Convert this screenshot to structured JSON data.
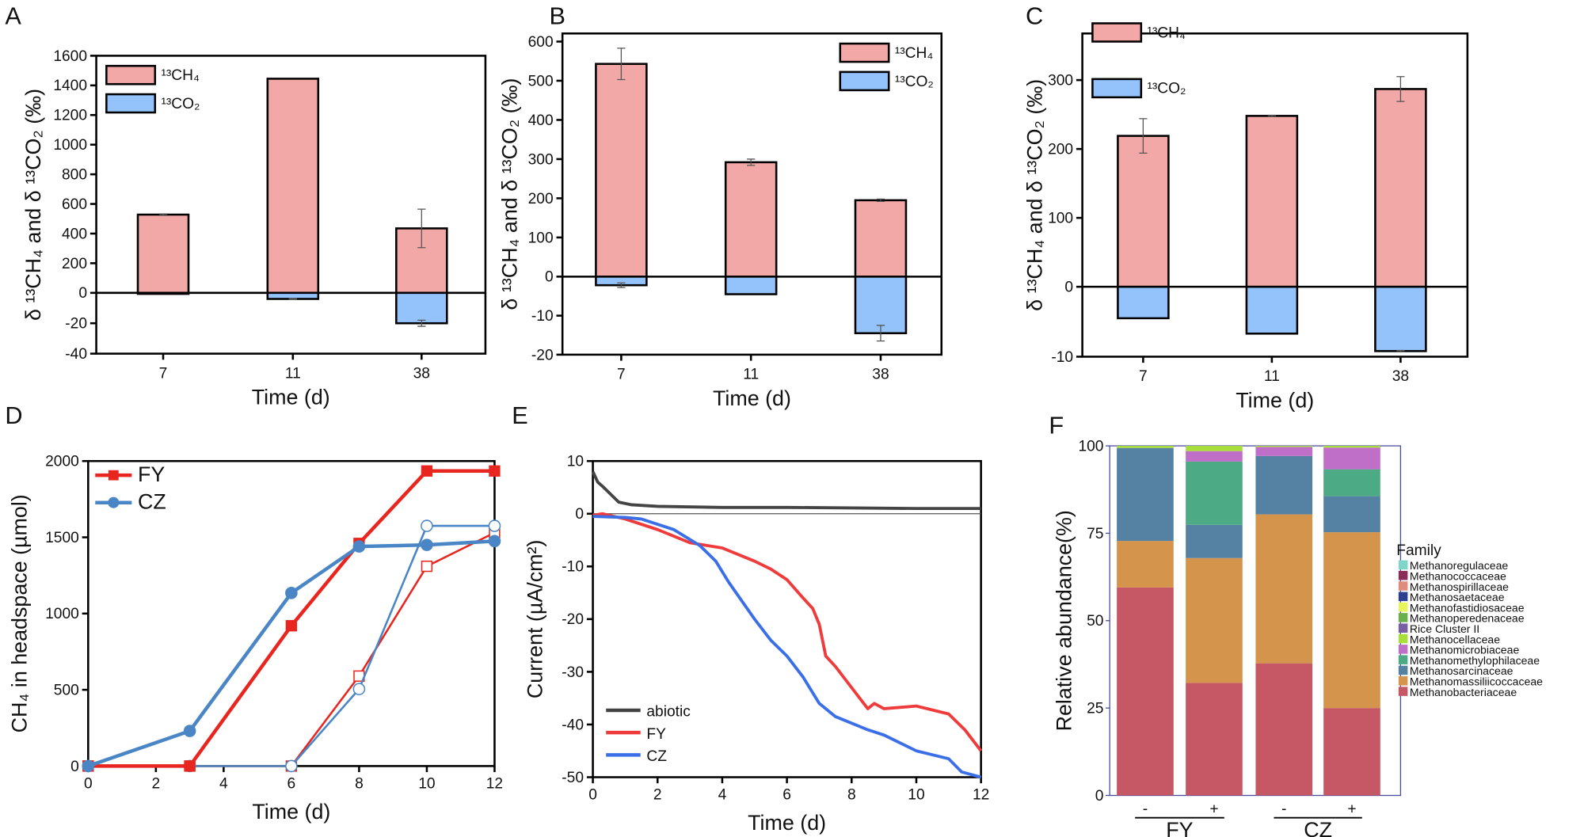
{
  "chart_data": [
    {
      "panel": "A",
      "type": "bar",
      "categories": [
        "7",
        "11",
        "38"
      ],
      "xlabel": "Time (d)",
      "ylabel": "δ ¹³CH₄ and δ ¹³CO₂ (‰)",
      "ylim_upper": [
        0,
        1600
      ],
      "ylim_lower": [
        -40,
        0
      ],
      "yticks_upper": [
        "1600",
        "1400",
        "1200",
        "1000",
        "800",
        "600",
        "400",
        "200",
        "0"
      ],
      "yticks_lower": [
        "-20",
        "-40"
      ],
      "series": [
        {
          "name": "¹³CH₄",
          "color": "#f2a8a6",
          "values": [
            528,
            1445,
            435
          ],
          "errors": [
            5,
            0,
            130
          ]
        },
        {
          "name": "¹³CO₂",
          "color": "#94c3fb",
          "values": [
            -0.3,
            -4,
            -20
          ],
          "errors": [
            0,
            0.3,
            2
          ]
        }
      ]
    },
    {
      "panel": "B",
      "type": "bar",
      "categories": [
        "7",
        "11",
        "38"
      ],
      "xlabel": "Time (d)",
      "ylabel": "δ ¹³CH₄ and δ ¹³CO₂ (‰)",
      "ylim_upper": [
        0,
        600
      ],
      "ylim_lower": [
        -20,
        0
      ],
      "yticks_upper": [
        "600",
        "500",
        "400",
        "300",
        "200",
        "100",
        "0"
      ],
      "yticks_lower": [
        "-10",
        "-20"
      ],
      "series": [
        {
          "name": "¹³CH₄",
          "color": "#f2a8a6",
          "values": [
            543,
            292,
            195
          ],
          "errors": [
            40,
            8,
            3
          ]
        },
        {
          "name": "¹³CO₂",
          "color": "#94c3fb",
          "values": [
            -2.2,
            -4.5,
            -14.5
          ],
          "errors": [
            0.6,
            0,
            2
          ]
        }
      ]
    },
    {
      "panel": "C",
      "type": "bar",
      "categories": [
        "7",
        "11",
        "38"
      ],
      "xlabel": "Time (d)",
      "ylabel": "δ ¹³CH₄ and δ ¹³CO₂ (‰)",
      "ylim_upper": [
        0,
        300
      ],
      "ylim_lower": [
        -10,
        0
      ],
      "yticks_upper": [
        "300",
        "200",
        "100",
        "0"
      ],
      "yticks_lower": [
        "-10"
      ],
      "series": [
        {
          "name": "¹³CH₄",
          "color": "#f2a8a6",
          "values": [
            219,
            248,
            287
          ],
          "errors": [
            25,
            1,
            18
          ]
        },
        {
          "name": "¹³CO₂",
          "color": "#94c3fb",
          "values": [
            -4.5,
            -6.7,
            -9.2
          ],
          "errors": [
            0,
            0,
            0.1
          ]
        }
      ]
    },
    {
      "panel": "D",
      "type": "line",
      "xlabel": "Time (d)",
      "ylabel": "CH₄ in headspace (µmol)",
      "xlim": [
        0,
        12
      ],
      "ylim": [
        0,
        2000
      ],
      "xticks": [
        "0",
        "2",
        "4",
        "6",
        "8",
        "10",
        "12"
      ],
      "yticks": [
        "0",
        "500",
        "1000",
        "1500",
        "2000"
      ],
      "x": [
        0,
        3,
        6,
        8,
        10,
        12
      ],
      "series": [
        {
          "name": "FY",
          "color": "#e8261f",
          "marker": "square",
          "filled": true,
          "values": [
            0,
            0,
            920,
            1460,
            1935,
            1935
          ]
        },
        {
          "name": "CZ",
          "color": "#4a86c5",
          "marker": "circle",
          "filled": true,
          "values": [
            0,
            230,
            1135,
            1440,
            1450,
            1475
          ]
        },
        {
          "name": "FY (open)",
          "color": "#e8261f",
          "marker": "square",
          "filled": false,
          "values": [
            0,
            0,
            0,
            590,
            1310,
            1530
          ]
        },
        {
          "name": "CZ (open)",
          "color": "#4a86c5",
          "marker": "circle",
          "filled": false,
          "values": [
            0,
            0,
            0,
            505,
            1575,
            1575
          ]
        }
      ],
      "legend": [
        "FY",
        "CZ"
      ]
    },
    {
      "panel": "E",
      "type": "line",
      "xlabel": "Time (d)",
      "ylabel": "Current (µA/cm²)",
      "xlim": [
        0,
        12
      ],
      "ylim": [
        -50,
        10
      ],
      "xticks": [
        "0",
        "2",
        "4",
        "6",
        "8",
        "10",
        "12"
      ],
      "yticks": [
        "10",
        "0",
        "-10",
        "-20",
        "-30",
        "-40",
        "-50"
      ],
      "series": [
        {
          "name": "abiotic",
          "color": "#444444",
          "points": [
            [
              0,
              8
            ],
            [
              0.15,
              6
            ],
            [
              0.3,
              5.2
            ],
            [
              0.5,
              4
            ],
            [
              0.8,
              2.2
            ],
            [
              1.2,
              1.7
            ],
            [
              2,
              1.4
            ],
            [
              4,
              1.2
            ],
            [
              6,
              1.2
            ],
            [
              8,
              1.1
            ],
            [
              10,
              1.0
            ],
            [
              12,
              1.0
            ]
          ]
        },
        {
          "name": "FY",
          "color": "#ef3b3b",
          "points": [
            [
              0,
              -0.3
            ],
            [
              0.3,
              0
            ],
            [
              1,
              -1
            ],
            [
              2,
              -3
            ],
            [
              3,
              -5.5
            ],
            [
              4,
              -6.5
            ],
            [
              5,
              -9
            ],
            [
              5.5,
              -10.5
            ],
            [
              6,
              -12.5
            ],
            [
              6.5,
              -16
            ],
            [
              6.8,
              -18
            ],
            [
              7,
              -21
            ],
            [
              7.2,
              -27
            ],
            [
              7.5,
              -29
            ],
            [
              8,
              -33
            ],
            [
              8.5,
              -37
            ],
            [
              8.7,
              -36
            ],
            [
              9,
              -37
            ],
            [
              10,
              -36.5
            ],
            [
              11,
              -38
            ],
            [
              11.5,
              -41
            ],
            [
              12,
              -45
            ]
          ]
        },
        {
          "name": "CZ",
          "color": "#3b6fe8",
          "points": [
            [
              0,
              -0.5
            ],
            [
              1,
              -0.7
            ],
            [
              1.5,
              -1
            ],
            [
              2.5,
              -3
            ],
            [
              3.3,
              -6
            ],
            [
              3.8,
              -9
            ],
            [
              4.2,
              -13
            ],
            [
              5,
              -20
            ],
            [
              5.5,
              -24
            ],
            [
              6,
              -27
            ],
            [
              6.5,
              -31
            ],
            [
              7,
              -36
            ],
            [
              7.5,
              -38.5
            ],
            [
              8.5,
              -41
            ],
            [
              9,
              -42
            ],
            [
              10,
              -45
            ],
            [
              11,
              -46.5
            ],
            [
              11.4,
              -49
            ],
            [
              12,
              -50
            ]
          ]
        }
      ],
      "legend": [
        "abiotic",
        "FY",
        "CZ"
      ]
    },
    {
      "panel": "F",
      "type": "bar",
      "stacked": true,
      "ylabel": "Relative abundance(%)",
      "ylim": [
        0,
        100
      ],
      "yticks": [
        "0",
        "25",
        "50",
        "75",
        "100"
      ],
      "categories": [
        "-",
        "+",
        "-",
        "+"
      ],
      "groups": [
        "FY",
        "CZ"
      ],
      "legend_title": "Family",
      "families": [
        {
          "name": "Methanoregulaceae",
          "color": "#7fd6c8"
        },
        {
          "name": "Methanococcaceae",
          "color": "#8b2c5a"
        },
        {
          "name": "Methanospirillaceae",
          "color": "#e08c7a"
        },
        {
          "name": "Methanosaetaceae",
          "color": "#2e3f8f"
        },
        {
          "name": "Methanofastidiosaceae",
          "color": "#e6f55a"
        },
        {
          "name": "Methanoperedenaceae",
          "color": "#6ab04c"
        },
        {
          "name": "Rice Cluster II",
          "color": "#7b5fa3"
        },
        {
          "name": "Methanocellaceae",
          "color": "#a9df3b"
        },
        {
          "name": "Methanomicrobiaceae",
          "color": "#c06fc8"
        },
        {
          "name": "Methanomethylophilaceae",
          "color": "#4caa85"
        },
        {
          "name": "Methanosarcinaceae",
          "color": "#5581a3"
        },
        {
          "name": "Methanomassiliicoccaceae",
          "color": "#d4944b"
        },
        {
          "name": "Methanobacteriaceae",
          "color": "#c65865"
        }
      ],
      "stack_order": [
        "Methanobacteriaceae",
        "Methanomassiliicoccaceae",
        "Methanosarcinaceae",
        "Methanomethylophilaceae",
        "Methanomicrobiaceae",
        "Methanocellaceae"
      ],
      "values": [
        [
          59.5,
          13.3,
          26.6,
          0.0,
          0.0,
          0.6
        ],
        [
          32.2,
          35.7,
          9.5,
          18.1,
          3.0,
          1.5
        ],
        [
          37.8,
          42.6,
          16.7,
          0.0,
          2.6,
          0.3
        ],
        [
          25.0,
          50.3,
          10.3,
          7.7,
          6.2,
          0.5
        ]
      ]
    }
  ]
}
